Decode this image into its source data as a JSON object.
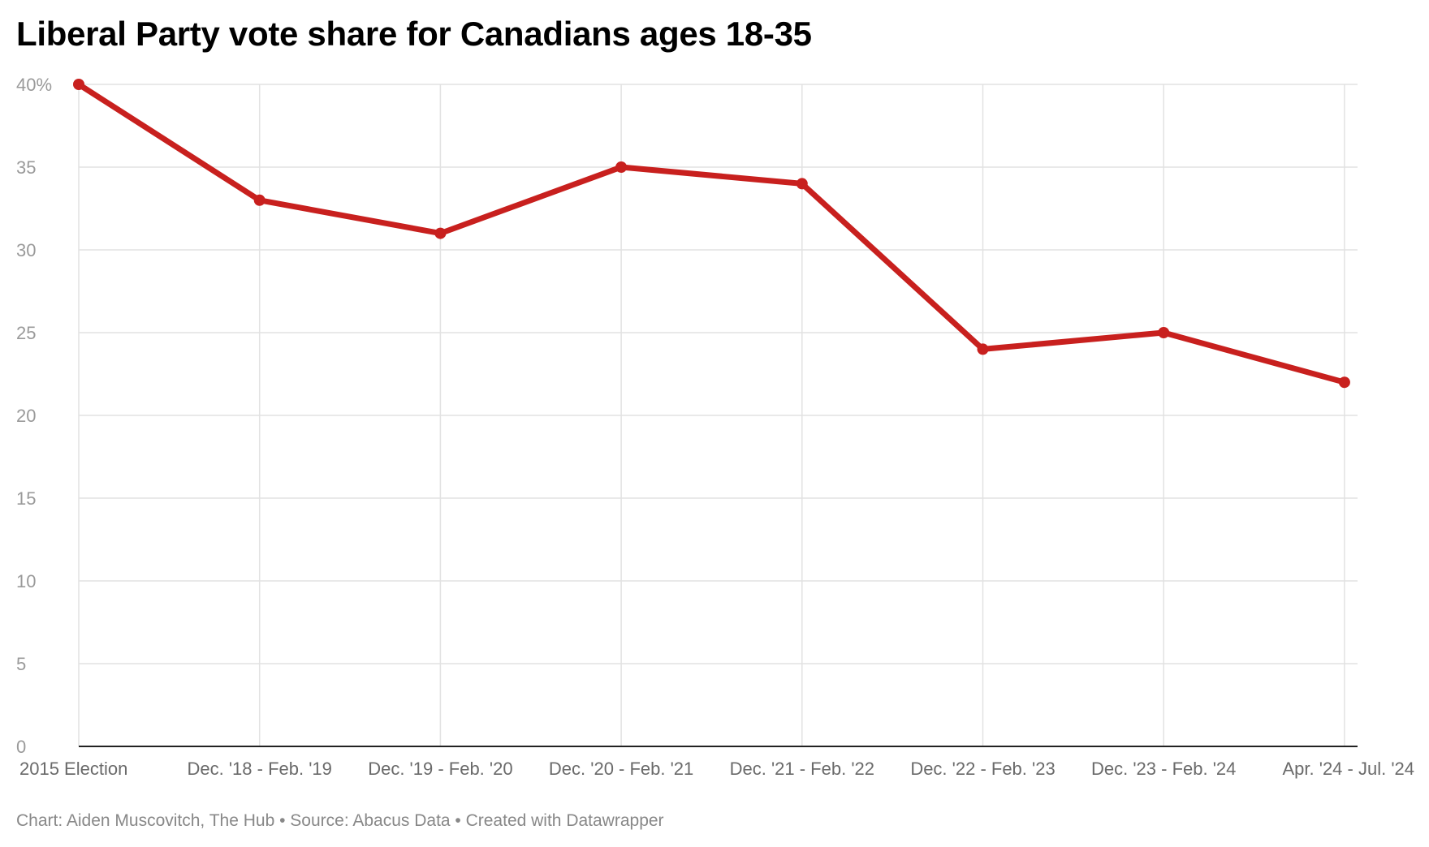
{
  "chart_data": {
    "type": "line",
    "title": "Liberal Party vote share for Canadians ages 18-35",
    "categories": [
      "2015 Election",
      "Dec. '18 - Feb. '19",
      "Dec. '19 - Feb. '20",
      "Dec. '20 - Feb. '21",
      "Dec. '21 - Feb. '22",
      "Dec. '22 - Feb. '23",
      "Dec. '23 - Feb. '24",
      "Apr. '24 - Jul. '24"
    ],
    "series": [
      {
        "values": [
          40,
          33,
          31,
          35,
          34,
          24,
          25,
          22
        ],
        "color": "#c8201e"
      }
    ],
    "ylim": [
      0,
      40
    ],
    "yticks": [
      0,
      5,
      10,
      15,
      20,
      25,
      30,
      35,
      40
    ],
    "ytick_labels": [
      "0",
      "5",
      "10",
      "15",
      "20",
      "25",
      "30",
      "35",
      "40%"
    ],
    "xlabel": "",
    "ylabel": "",
    "grid": true,
    "legend": "none"
  },
  "footer": "Chart: Aiden Muscovitch, The Hub • Source: Abacus Data • Created with Datawrapper"
}
